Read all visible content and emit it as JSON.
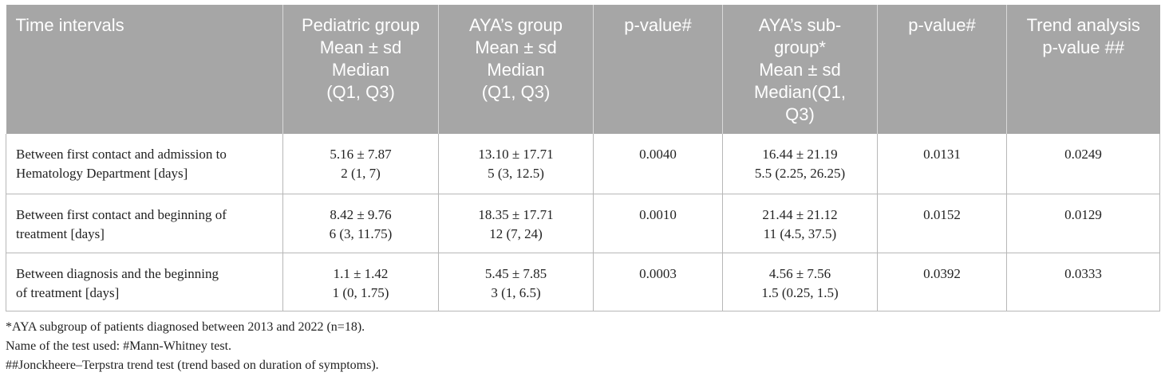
{
  "table": {
    "headers": [
      [
        "Time intervals"
      ],
      [
        "Pediatric group",
        "Mean ± sd",
        "Median",
        "(Q1, Q3)"
      ],
      [
        "AYA’s group",
        "Mean ± sd",
        "Median",
        "(Q1, Q3)"
      ],
      [
        "p-value#"
      ],
      [
        "AYA’s sub-",
        "group*",
        "Mean ± sd",
        "Median(Q1,",
        "Q3)"
      ],
      [
        "p-value#"
      ],
      [
        "Trend analysis",
        "p-value ##"
      ]
    ],
    "rows": [
      [
        [
          "Between first contact and admission to",
          "Hematology Department [days]"
        ],
        [
          "5.16 ± 7.87",
          "2 (1, 7)"
        ],
        [
          "13.10 ± 17.71",
          "5 (3, 12.5)"
        ],
        [
          "0.0040"
        ],
        [
          "16.44 ± 21.19",
          "5.5 (2.25, 26.25)"
        ],
        [
          "0.0131"
        ],
        [
          "0.0249"
        ]
      ],
      [
        [
          "Between first contact and beginning of",
          "treatment [days]"
        ],
        [
          "8.42 ± 9.76",
          "6 (3, 11.75)"
        ],
        [
          "18.35 ± 17.71",
          "12 (7, 24)"
        ],
        [
          "0.0010"
        ],
        [
          "21.44 ± 21.12",
          "11 (4.5, 37.5)"
        ],
        [
          "0.0152"
        ],
        [
          "0.0129"
        ]
      ],
      [
        [
          "Between diagnosis and the beginning",
          "of treatment [days]"
        ],
        [
          "1.1 ± 1.42",
          "1 (0, 1.75)"
        ],
        [
          "5.45 ± 7.85",
          "3 (1, 6.5)"
        ],
        [
          "0.0003"
        ],
        [
          "4.56 ± 7.56",
          "1.5 (0.25, 1.5)"
        ],
        [
          "0.0392"
        ],
        [
          "0.0333"
        ]
      ]
    ]
  },
  "notes": [
    "*AYA subgroup of patients diagnosed between 2013 and 2022 (n=18).",
    "Name of the test used: #Mann-Whitney test.",
    "##Jonckheere–Terpstra trend test (trend based on duration of symptoms)."
  ]
}
